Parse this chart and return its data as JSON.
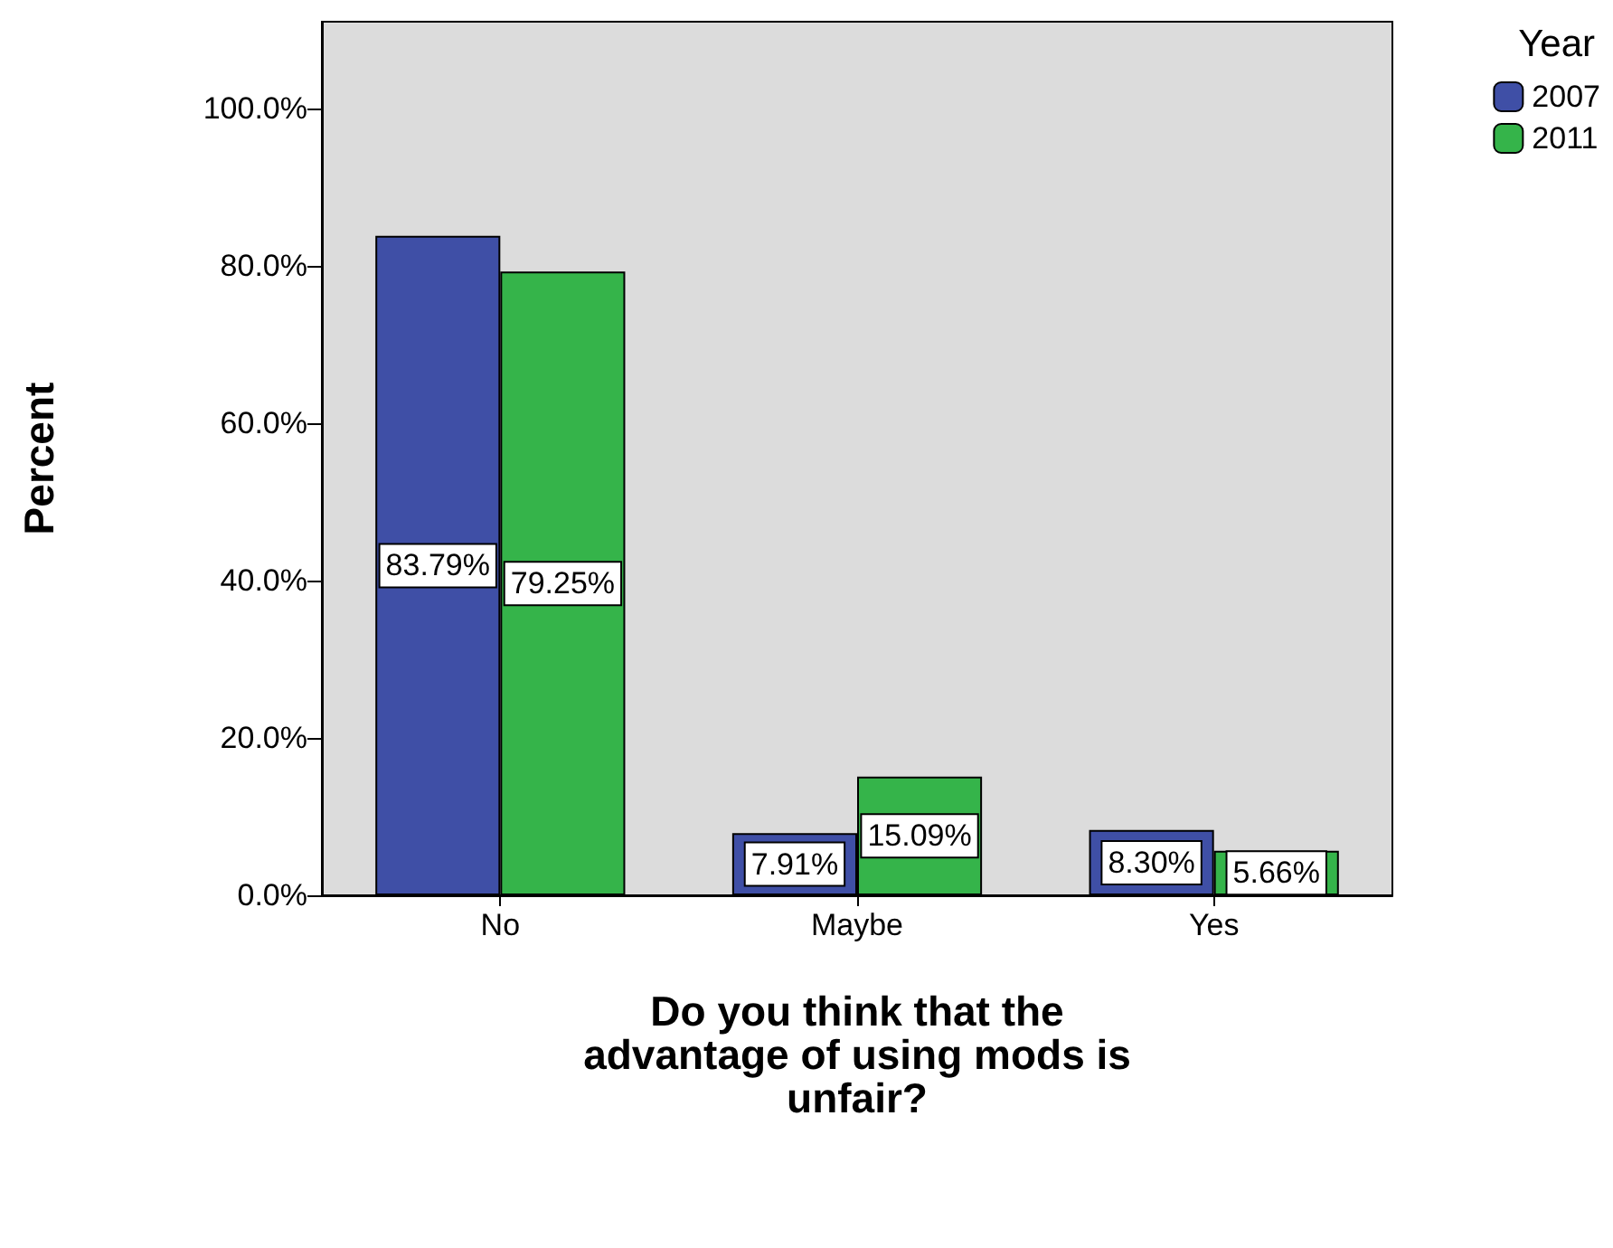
{
  "chart_data": {
    "type": "bar",
    "xlabel": "Do you think that the\nadvantage of using mods is\nunfair?",
    "ylabel": "Percent",
    "legend_title": "Year",
    "categories": [
      "No",
      "Maybe",
      "Yes"
    ],
    "series": [
      {
        "name": "2007",
        "color": "#3f4fa6",
        "values": [
          83.79,
          7.91,
          8.3
        ],
        "value_labels": [
          "83.79%",
          "7.91%",
          "8.30%"
        ]
      },
      {
        "name": "2011",
        "color": "#35b44a",
        "values": [
          79.25,
          15.09,
          5.66
        ],
        "value_labels": [
          "79.25%",
          "15.09%",
          "5.66%"
        ]
      }
    ],
    "ylim": [
      0,
      111
    ],
    "yticks": [
      {
        "value": 0,
        "label": "0.0%"
      },
      {
        "value": 20,
        "label": "20.0%"
      },
      {
        "value": 40,
        "label": "40.0%"
      },
      {
        "value": 60,
        "label": "60.0%"
      },
      {
        "value": 80,
        "label": "80.0%"
      },
      {
        "value": 100,
        "label": "100.0%"
      }
    ],
    "grid": false,
    "legend": "top right"
  }
}
